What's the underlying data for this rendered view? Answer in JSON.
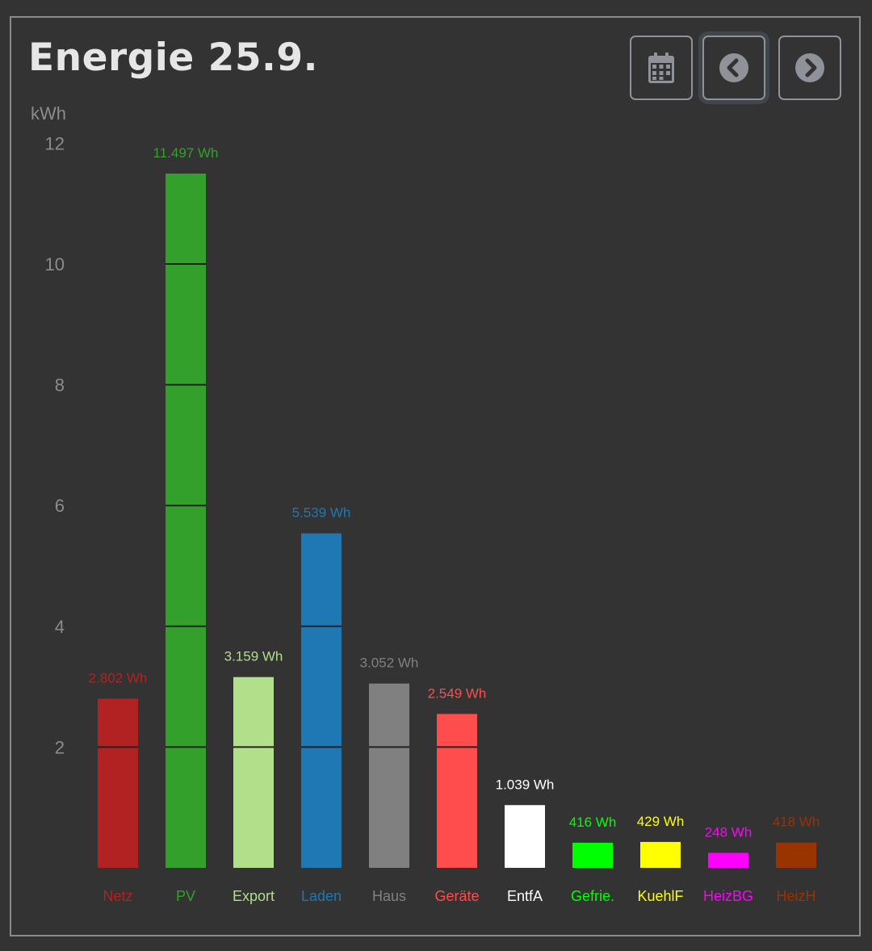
{
  "header": {
    "title": "Energie 25.9."
  },
  "toolbar": {
    "calendar_icon": "calendar-icon",
    "prev_icon": "chevron-left-circle-icon",
    "next_icon": "chevron-right-circle-icon",
    "active_button": "prev"
  },
  "colors": {
    "background": "#333333",
    "border": "#8a8a8a",
    "title": "#e6e6e6",
    "axis_text": "#8c8c8c",
    "icon": "#8f9298"
  },
  "chart_data": {
    "type": "bar",
    "title": "Energie 25.9.",
    "ylabel": "kWh",
    "xlabel": "",
    "ylim": [
      0,
      12
    ],
    "yticks": [
      2,
      4,
      6,
      8,
      10,
      12
    ],
    "grid": false,
    "segment_lines": "white-ish dividers at every 2 kWh inside bars",
    "categories": [
      "Netz",
      "PV",
      "Export",
      "Laden",
      "Haus",
      "Geräte",
      "EntfA",
      "Gefrie.",
      "KuehlF",
      "HeizBG",
      "HeizH"
    ],
    "values": [
      2.802,
      11.497,
      3.159,
      5.539,
      3.052,
      2.549,
      1.039,
      0.416,
      0.429,
      0.248,
      0.418
    ],
    "value_labels": [
      "2.802 Wh",
      "11.497 Wh",
      "3.159 Wh",
      "5.539 Wh",
      "3.052 Wh",
      "2.549 Wh",
      "1.039 Wh",
      "416 Wh",
      "429 Wh",
      "248 Wh",
      "418 Wh"
    ],
    "colors": [
      "#b22222",
      "#33a02c",
      "#b2df8a",
      "#1f78b4",
      "#808080",
      "#ff4c4c",
      "#ffffff",
      "#00ff00",
      "#ffff00",
      "#ff00ff",
      "#993300"
    ]
  }
}
